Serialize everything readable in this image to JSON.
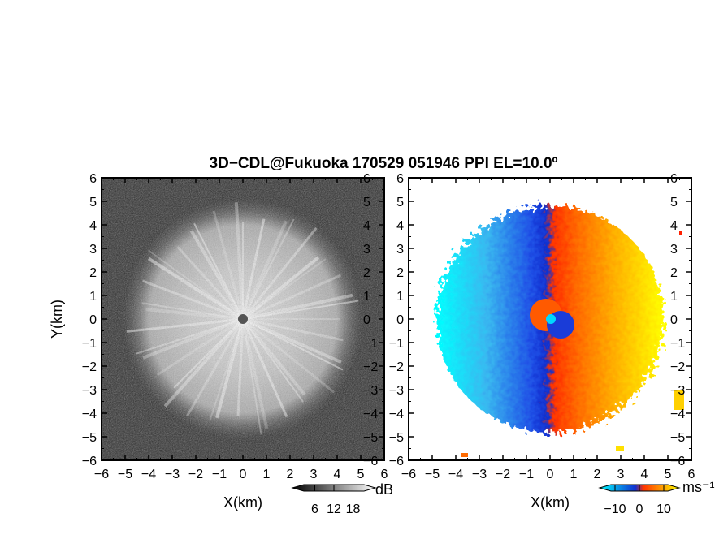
{
  "title": "3D−CDL@Fukuoka 170529 051946 PPI EL=10.0º",
  "axis_ticks": [
    "−6",
    "−5",
    "−4",
    "−3",
    "−2",
    "−1",
    "0",
    "1",
    "2",
    "3",
    "4",
    "5",
    "6"
  ],
  "tick_values": [
    -6,
    -5,
    -4,
    -3,
    -2,
    -1,
    0,
    1,
    2,
    3,
    4,
    5,
    6
  ],
  "chart_data": [
    {
      "type": "heatmap",
      "panel": "left",
      "quantity": "SNR",
      "xlabel": "X(km)",
      "ylabel": "Y(km)",
      "xlim": [
        -6,
        6
      ],
      "ylim": [
        -6,
        6
      ],
      "colormap": "grayscale",
      "colorbar": {
        "ticks": [
          "6",
          "12",
          "18"
        ],
        "tick_values": [
          6,
          12,
          18
        ],
        "range": [
          0,
          24
        ],
        "unit": "dB"
      }
    },
    {
      "type": "heatmap",
      "panel": "right",
      "quantity": "radial velocity",
      "xlabel": "X(km)",
      "ylabel": "",
      "xlim": [
        -6,
        6
      ],
      "ylim": [
        -6,
        6
      ],
      "colormap": "cyan-blue-red-yellow",
      "colorbar": {
        "ticks": [
          "−10",
          "0",
          "10"
        ],
        "tick_values": [
          -10,
          0,
          10
        ],
        "range": [
          -15,
          15
        ],
        "unit": "ms⁻¹"
      }
    }
  ]
}
